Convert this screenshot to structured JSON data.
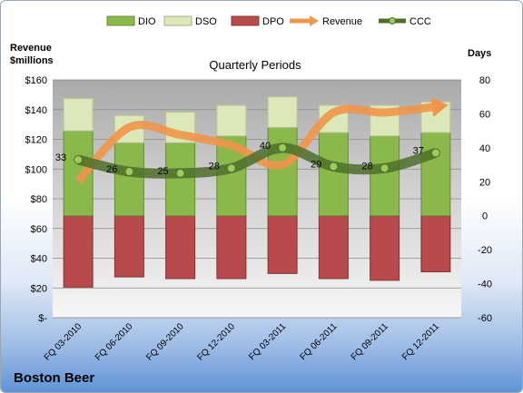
{
  "chart_data": {
    "type": "bar",
    "title": "Quarterly Periods",
    "company": "Boston Beer",
    "left_axis_label_line1": "Revenue",
    "left_axis_label_line2": "$millions",
    "right_axis_label": "Days",
    "categories": [
      "FQ 03-2010",
      "FQ 06-2010",
      "FQ 09-2010",
      "FQ 12-2010",
      "FQ 03-2011",
      "FQ 06-2011",
      "FQ 09-2011",
      "FQ 12-2011"
    ],
    "left_ticks": [
      "$-",
      "$20",
      "$40",
      "$60",
      "$80",
      "$100",
      "$120",
      "$140",
      "$160"
    ],
    "right_ticks": [
      "-60",
      "-40",
      "-20",
      "0",
      "20",
      "40",
      "60",
      "80"
    ],
    "left_ylim": [
      0,
      160
    ],
    "right_ylim": [
      -60,
      80
    ],
    "legend_position": "top",
    "series": [
      {
        "name": "DIO",
        "axis": "right",
        "stacked": true,
        "color": "#8ab84a",
        "values": [
          50,
          43,
          43,
          47,
          52,
          49,
          47,
          49
        ]
      },
      {
        "name": "DSO",
        "axis": "right",
        "stacked": true,
        "color": "#dde8b8",
        "values": [
          19,
          16,
          18,
          18,
          18,
          16,
          18,
          18
        ]
      },
      {
        "name": "DPO",
        "axis": "right",
        "stacked": false,
        "color": "#b84a4c",
        "values": [
          -42,
          -36,
          -37,
          -37,
          -34,
          -37,
          -38,
          -33
        ]
      },
      {
        "name": "Revenue",
        "axis": "left",
        "type": "line",
        "color": "#f0954a",
        "values": [
          92,
          128,
          123,
          116,
          103,
          138,
          138,
          142
        ]
      },
      {
        "name": "CCC",
        "axis": "right",
        "type": "line",
        "color": "#4f6e2a",
        "values": [
          33,
          26,
          25,
          28,
          40,
          29,
          28,
          37
        ],
        "labels": [
          "33",
          "26",
          "25",
          "28",
          "40",
          "29",
          "28",
          "37"
        ]
      }
    ]
  }
}
